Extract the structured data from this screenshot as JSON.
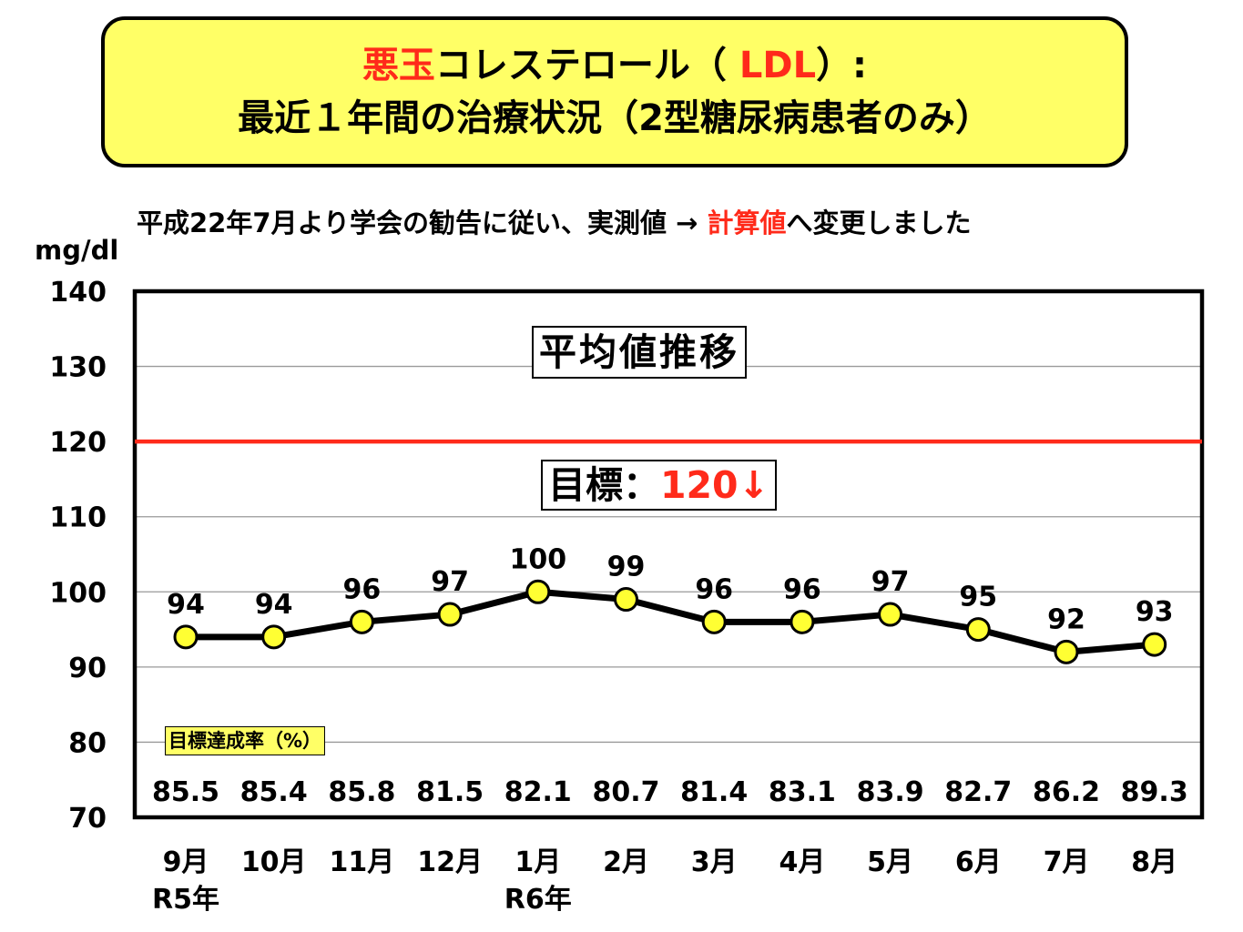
{
  "title": {
    "line1_red": "悪玉",
    "line1_mid": "コレステロール（ ",
    "line1_red2": "LDL",
    "line1_end": "）:",
    "line2": "最近１年間の治療状況（2型糖尿病患者のみ）"
  },
  "notice": {
    "prefix": "平成22年7月より学会の勧告に従い、実測値 → ",
    "highlight": "計算値",
    "suffix": "へ変更しました"
  },
  "colors": {
    "title_bg": "#ffff66",
    "target_line": "#ff2a1a",
    "marker": "#ffff33",
    "highlight": "#ff2a1a"
  },
  "avg_label": "平均値推移",
  "target_label": {
    "prefix": "目標：",
    "value": "120↓"
  },
  "rate_label": "目標達成率（%）",
  "chart_data": {
    "type": "line",
    "ylabel": "mg/dl",
    "ylim": [
      70,
      140
    ],
    "yticks": [
      "140",
      "130",
      "120",
      "110",
      "100",
      "90",
      "80",
      "70"
    ],
    "grid": true,
    "target": 120,
    "categories": [
      "9月",
      "10月",
      "11月",
      "12月",
      "1月",
      "2月",
      "3月",
      "4月",
      "5月",
      "6月",
      "7月",
      "8月"
    ],
    "sublabels": [
      "R5年",
      "",
      "",
      "",
      "R6年",
      "",
      "",
      "",
      "",
      "",
      "",
      ""
    ],
    "values": [
      94,
      94,
      96,
      97,
      100,
      99,
      96,
      96,
      97,
      95,
      92,
      93
    ],
    "value_labels": [
      "94",
      "94",
      "96",
      "97",
      "100",
      "99",
      "96",
      "96",
      "97",
      "95",
      "92",
      "93"
    ],
    "achievement_rates": [
      "85.5",
      "85.4",
      "85.8",
      "81.5",
      "82.1",
      "80.7",
      "81.4",
      "83.1",
      "83.9",
      "82.7",
      "86.2",
      "89.3"
    ]
  }
}
